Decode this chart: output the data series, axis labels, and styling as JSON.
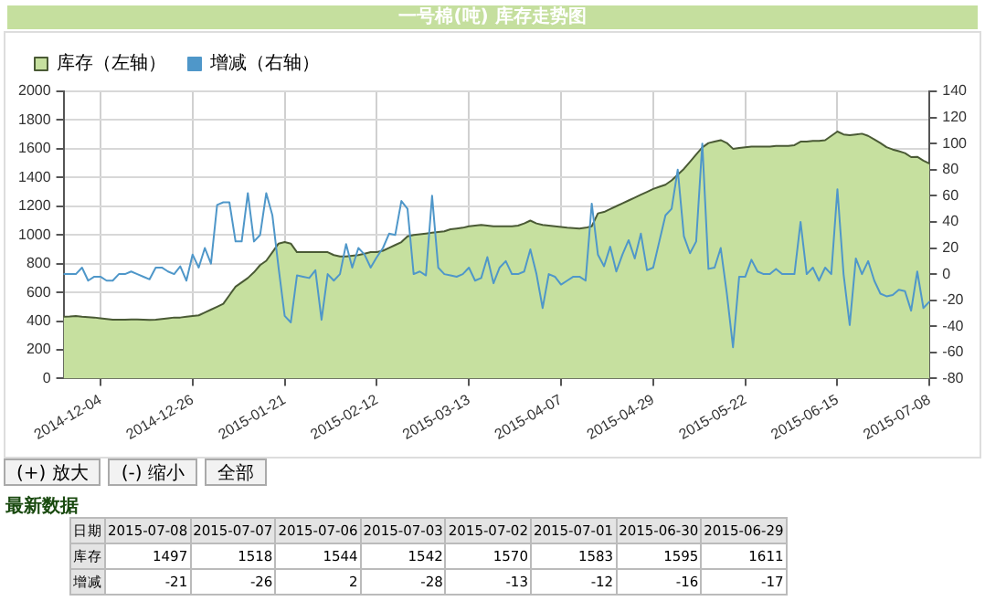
{
  "chart_data": {
    "type": "area",
    "title": "一号棉(吨) 库存走势图",
    "legend": "top left",
    "grid": true,
    "marker": "none",
    "categories": [
      null,
      null,
      null,
      null,
      null,
      null,
      "2014-12-04",
      null,
      null,
      null,
      null,
      null,
      null,
      null,
      null,
      null,
      null,
      null,
      null,
      null,
      null,
      "2014-12-26",
      null,
      null,
      null,
      null,
      null,
      null,
      null,
      null,
      null,
      null,
      null,
      null,
      null,
      null,
      "2015-01-21",
      null,
      null,
      null,
      null,
      null,
      null,
      null,
      null,
      null,
      null,
      null,
      null,
      null,
      null,
      "2015-02-12",
      null,
      null,
      null,
      null,
      null,
      null,
      null,
      null,
      null,
      null,
      null,
      null,
      null,
      null,
      "2015-03-13",
      null,
      null,
      null,
      null,
      null,
      null,
      null,
      null,
      null,
      null,
      null,
      null,
      null,
      null,
      "2015-04-07",
      null,
      null,
      null,
      null,
      null,
      null,
      null,
      null,
      null,
      null,
      null,
      null,
      null,
      null,
      "2015-04-29",
      null,
      null,
      null,
      null,
      null,
      null,
      null,
      null,
      null,
      null,
      null,
      null,
      null,
      null,
      "2015-05-22",
      null,
      null,
      null,
      null,
      null,
      null,
      null,
      null,
      null,
      null,
      null,
      null,
      null,
      null,
      "2015-06-15",
      null,
      null,
      null,
      null,
      null,
      null,
      null,
      null,
      null,
      null,
      null,
      null,
      null,
      null,
      "2015-07-08"
    ],
    "ylim": [
      0,
      2000
    ],
    "yticks": [
      0,
      200,
      400,
      600,
      800,
      1000,
      1200,
      1400,
      1600,
      1800,
      2000
    ],
    "y2lim": [
      -80,
      140
    ],
    "y2ticks": [
      -80,
      -60,
      -40,
      -20,
      0,
      20,
      40,
      60,
      80,
      100,
      120,
      140
    ],
    "series": [
      {
        "name": "库存（左轴）",
        "color": "#c6e09f",
        "values": [
          430,
          432,
          435,
          430,
          428,
          425,
          420,
          415,
          410,
          410,
          410,
          412,
          412,
          410,
          408,
          410,
          415,
          420,
          425,
          425,
          430,
          435,
          440,
          460,
          480,
          500,
          520,
          580,
          640,
          670,
          700,
          740,
          790,
          820,
          880,
          940,
          950,
          940,
          880,
          880,
          880,
          880,
          880,
          880,
          860,
          850,
          850,
          855,
          860,
          870,
          880,
          880,
          890,
          910,
          930,
          950,
          990,
          1000,
          1005,
          1010,
          1015,
          1020,
          1025,
          1040,
          1045,
          1050,
          1060,
          1065,
          1070,
          1065,
          1060,
          1060,
          1060,
          1060,
          1065,
          1080,
          1100,
          1080,
          1070,
          1065,
          1060,
          1055,
          1050,
          1048,
          1045,
          1050,
          1060,
          1150,
          1160,
          1180,
          1200,
          1220,
          1240,
          1260,
          1280,
          1300,
          1320,
          1335,
          1350,
          1380,
          1420,
          1460,
          1510,
          1560,
          1610,
          1640,
          1650,
          1660,
          1640,
          1600,
          1605,
          1610,
          1615,
          1615,
          1615,
          1615,
          1620,
          1620,
          1620,
          1625,
          1650,
          1650,
          1655,
          1655,
          1660,
          1690,
          1720,
          1700,
          1695,
          1700,
          1705,
          1690,
          1665,
          1640,
          1611,
          1595,
          1583,
          1570,
          1542,
          1544,
          1518,
          1497
        ]
      },
      {
        "name": "增减（右轴）",
        "type": "line",
        "axis": "y2",
        "color": "#4f97c9",
        "values": [
          0,
          0,
          0,
          5,
          -5,
          -2,
          -2,
          -5,
          -5,
          0,
          0,
          2,
          0,
          -2,
          -4,
          5,
          5,
          2,
          0,
          6,
          -5,
          15,
          5,
          20,
          8,
          53,
          55,
          55,
          25,
          25,
          62,
          25,
          30,
          62,
          45,
          5,
          -32,
          -37,
          -1,
          -2,
          -3,
          3,
          -35,
          0,
          -5,
          0,
          23,
          5,
          20,
          15,
          5,
          13,
          20,
          31,
          30,
          56,
          50,
          0,
          2,
          -1,
          60,
          5,
          0,
          -1,
          -2,
          0,
          5,
          -5,
          -3,
          13,
          -7,
          5,
          10,
          0,
          0,
          2,
          19,
          0,
          -26,
          0,
          -2,
          -8,
          -5,
          -2,
          -2,
          -5,
          54,
          15,
          6,
          21,
          2,
          15,
          26,
          12,
          31,
          3,
          5,
          25,
          45,
          50,
          80,
          29,
          16,
          25,
          100,
          4,
          5,
          20,
          -15,
          -56,
          -2,
          -2,
          11,
          2,
          0,
          0,
          4,
          0,
          0,
          0,
          40,
          0,
          5,
          -5,
          5,
          0,
          65,
          0,
          -39,
          12,
          0,
          10,
          -5,
          -15,
          -17,
          -16,
          -12,
          -13,
          -28,
          2,
          -26,
          -21
        ]
      }
    ],
    "annotations": [
      "(+) 放大",
      "(-) 缩小",
      "全部",
      "最新数据",
      "日期",
      "2015-07-08",
      "2015-07-07",
      "2015-07-06",
      "2015-07-03",
      "2015-07-02",
      "2015-07-01",
      "2015-06-30",
      "2015-06-29",
      "库存",
      "1497",
      "1518",
      "1544",
      "1542",
      "1570",
      "1583",
      "1595",
      "1611",
      "增减",
      "-21",
      "-26",
      "2",
      "-28",
      "-13",
      "-12",
      "-16",
      "-17"
    ]
  }
}
